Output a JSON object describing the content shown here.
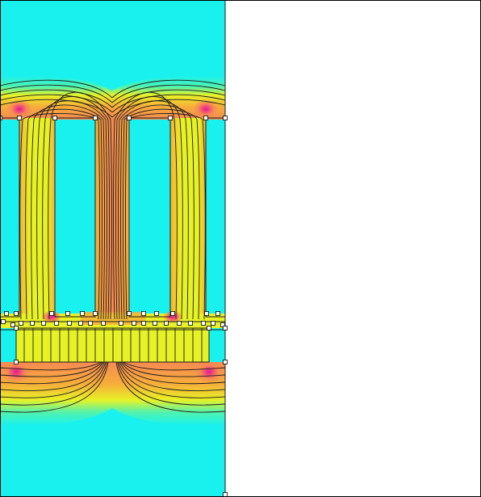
{
  "view": {
    "kind": "finite-element magnetic flux density plot",
    "colors": {
      "air_low_field": "#19f1ee",
      "low_mid": "#4ff2b0",
      "mid": "#e7f226",
      "mid_high": "#f6ae3a",
      "high": "#f58a52",
      "peak": "#e9149b",
      "flux_line": "#1a1a1a",
      "node_marker": "#000000",
      "empty_area": "#ffffff",
      "border": "#000000"
    }
  }
}
